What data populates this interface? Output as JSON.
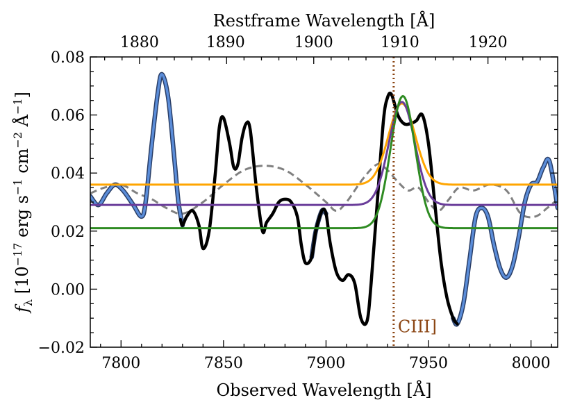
{
  "chart_data": {
    "type": "line",
    "xlabel": "Observed Wavelength [Å]",
    "ylabel_parts": [
      "f",
      "λ",
      " [10",
      "−17",
      " erg s",
      "−1",
      " cm",
      "−2",
      " Å",
      "−1",
      "]"
    ],
    "top_xlabel": "Restframe Wavelength [Å]",
    "xlim": [
      7785,
      8013
    ],
    "ylim": [
      -0.02,
      0.08
    ],
    "x_ticks": [
      7800,
      7850,
      7900,
      7950,
      8000
    ],
    "x_tick_labels": [
      "7800",
      "7850",
      "7900",
      "7950",
      "8000"
    ],
    "y_ticks": [
      -0.02,
      0.0,
      0.02,
      0.04,
      0.06,
      0.08
    ],
    "y_tick_labels": [
      "−0.02",
      "0.00",
      "0.02",
      "0.04",
      "0.06",
      "0.08"
    ],
    "top_ticks_obs": [
      7809,
      7851,
      7894,
      7936,
      7979
    ],
    "top_tick_labels": [
      "1880",
      "1890",
      "1900",
      "1910",
      "1920"
    ],
    "annotation": {
      "text": "CIII]",
      "x": 7933,
      "y": -0.013,
      "color": "#8B4513"
    },
    "vline": {
      "x": 7933,
      "color": "#8B4513",
      "style": "dotted"
    },
    "series": [
      {
        "name": "gray-dashed",
        "color": "#808080",
        "style": "dashed",
        "x": [
          7785,
          7792,
          7800,
          7808,
          7815,
          7822,
          7830,
          7840,
          7850,
          7860,
          7870,
          7880,
          7890,
          7900,
          7905,
          7910,
          7918,
          7925,
          7930,
          7935,
          7940,
          7945,
          7950,
          7955,
          7960,
          7965,
          7972,
          7980,
          7988,
          7995,
          8002,
          8008,
          8013
        ],
        "y": [
          0.033,
          0.035,
          0.036,
          0.033,
          0.031,
          0.028,
          0.026,
          0.03,
          0.036,
          0.041,
          0.0425,
          0.041,
          0.036,
          0.03,
          0.027,
          0.03,
          0.038,
          0.043,
          0.041,
          0.037,
          0.034,
          0.035,
          0.03,
          0.027,
          0.031,
          0.035,
          0.034,
          0.036,
          0.034,
          0.026,
          0.025,
          0.028,
          0.031
        ]
      },
      {
        "name": "blue-highlight",
        "color": "#5B8DD9",
        "style": "solid",
        "x": [
          7785,
          7789,
          7793,
          7797,
          7801,
          7806,
          7810,
          7812,
          7815,
          7818,
          7820,
          7823,
          7826,
          7828,
          7830,
          7832,
          7835,
          7838,
          7840,
          7843,
          7846,
          7848,
          7850,
          7853,
          7855,
          7857,
          7859,
          7861,
          7863,
          7866,
          7869,
          7871,
          7874,
          7877,
          7880,
          7883,
          7886,
          7888,
          7890,
          7893,
          7895,
          7898,
          7900,
          7902,
          7905,
          7908,
          7911,
          7914,
          7917,
          7920,
          7922,
          7925,
          7928,
          7930,
          7932,
          7935,
          7938,
          7941,
          7944,
          7947,
          7950,
          7953,
          7956,
          7959,
          7962,
          7964,
          7967,
          7970,
          7973,
          7976,
          7979,
          7982,
          7985,
          7988,
          7991,
          7994,
          7997,
          8000,
          8003,
          8006,
          8009,
          8013
        ],
        "y": [
          0.032,
          0.029,
          0.033,
          0.036,
          0.034,
          0.029,
          0.025,
          0.03,
          0.05,
          0.068,
          0.074,
          0.066,
          0.045,
          0.03,
          0.022,
          0.025,
          0.027,
          0.022,
          0.014,
          0.02,
          0.04,
          0.056,
          0.059,
          0.05,
          0.042,
          0.043,
          0.052,
          0.057,
          0.055,
          0.035,
          0.02,
          0.023,
          0.026,
          0.03,
          0.031,
          0.03,
          0.025,
          0.015,
          0.009,
          0.011,
          0.02,
          0.027,
          0.026,
          0.016,
          0.006,
          0.003,
          0.005,
          0.002,
          -0.01,
          -0.011,
          0.002,
          0.03,
          0.058,
          0.066,
          0.067,
          0.06,
          0.057,
          0.057,
          0.058,
          0.06,
          0.05,
          0.03,
          0.01,
          -0.003,
          -0.01,
          -0.012,
          -0.005,
          0.01,
          0.025,
          0.028,
          0.025,
          0.015,
          0.007,
          0.004,
          0.008,
          0.018,
          0.03,
          0.036,
          0.037,
          0.042,
          0.044,
          0.028
        ],
        "highlight_ranges": [
          [
            7785,
            7831
          ],
          [
            7893,
            7901
          ],
          [
            7962,
            8013
          ]
        ]
      },
      {
        "name": "black",
        "color": "#000000",
        "style": "solid",
        "x": [
          7829,
          7830,
          7832,
          7835,
          7838,
          7840,
          7843,
          7846,
          7848,
          7850,
          7853,
          7855,
          7857,
          7859,
          7861,
          7863,
          7866,
          7869,
          7871,
          7874,
          7877,
          7880,
          7883,
          7886,
          7888,
          7890,
          7893,
          7895,
          7898,
          7900,
          7902,
          7905,
          7908,
          7911,
          7914,
          7917,
          7920,
          7922,
          7925,
          7928,
          7930,
          7932,
          7935,
          7938,
          7941,
          7944,
          7947,
          7950,
          7953,
          7956,
          7959,
          7962,
          7964
        ],
        "y": [
          0.024,
          0.022,
          0.025,
          0.027,
          0.022,
          0.014,
          0.02,
          0.04,
          0.056,
          0.059,
          0.05,
          0.042,
          0.043,
          0.052,
          0.057,
          0.055,
          0.035,
          0.02,
          0.023,
          0.026,
          0.03,
          0.031,
          0.03,
          0.025,
          0.015,
          0.009,
          0.011,
          0.02,
          0.027,
          0.026,
          0.016,
          0.006,
          0.003,
          0.005,
          0.002,
          -0.01,
          -0.011,
          0.002,
          0.03,
          0.058,
          0.066,
          0.067,
          0.06,
          0.057,
          0.057,
          0.058,
          0.06,
          0.05,
          0.03,
          0.01,
          -0.003,
          -0.01,
          -0.012
        ]
      },
      {
        "name": "orange-gauss",
        "color": "#FFA500",
        "style": "solid",
        "gaussian": {
          "base": 0.036,
          "amp": 0.028,
          "center": 7937,
          "sigma": 6.5
        }
      },
      {
        "name": "purple-gauss",
        "color": "#6A3D9A",
        "style": "solid",
        "gaussian": {
          "base": 0.029,
          "amp": 0.0355,
          "center": 7937,
          "sigma": 6.3
        }
      },
      {
        "name": "green-gauss",
        "color": "#2E8B22",
        "style": "solid",
        "gaussian": {
          "base": 0.021,
          "amp": 0.0455,
          "center": 7937.5,
          "sigma": 6.0
        }
      }
    ]
  }
}
